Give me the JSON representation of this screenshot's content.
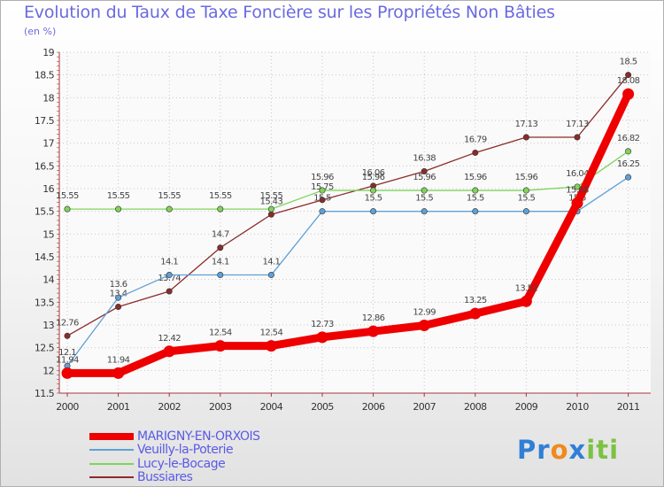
{
  "chart_data": {
    "type": "line",
    "title": "Evolution du Taux de Taxe Foncière sur les Propriétés Non Bâties",
    "unit_label": "(en %)",
    "x": [
      "2000",
      "2001",
      "2002",
      "2003",
      "2004",
      "2005",
      "2006",
      "2007",
      "2008",
      "2009",
      "2010",
      "2011"
    ],
    "y_ticks": [
      "11.5",
      "12",
      "12.5",
      "13",
      "13.5",
      "14",
      "14.5",
      "15",
      "15.5",
      "16",
      "16.5",
      "17",
      "17.5",
      "18",
      "18.5",
      "19"
    ],
    "ylim": [
      11.5,
      19
    ],
    "series": [
      {
        "name": "Bussiares",
        "color": "#8b2b2b",
        "values": [
          12.76,
          13.4,
          13.74,
          14.7,
          15.43,
          15.75,
          16.06,
          16.38,
          16.79,
          17.13,
          17.13,
          18.5
        ],
        "labels": [
          "12.76",
          "13.4",
          "13.74",
          "14.7",
          "15.43",
          "15.75",
          "16.06",
          "16.38",
          "16.79",
          "17.13",
          "17.13",
          "18.5"
        ]
      },
      {
        "name": "Lucy-le-Bocage",
        "color": "#7fd45a",
        "values": [
          15.55,
          15.55,
          15.55,
          15.55,
          15.55,
          15.96,
          15.96,
          15.96,
          15.96,
          15.96,
          16.04,
          16.82
        ],
        "labels": [
          "15.55",
          "15.55",
          "15.55",
          "15.55",
          "15.55",
          "15.96",
          "15.96",
          "15.96",
          "15.96",
          "15.96",
          "16.04",
          "16.82"
        ]
      },
      {
        "name": "Veuilly-la-Poterie",
        "color": "#5fa0d6",
        "values": [
          12.1,
          13.6,
          14.1,
          14.1,
          14.1,
          15.5,
          15.5,
          15.5,
          15.5,
          15.5,
          15.5,
          16.25
        ],
        "labels": [
          "12.1",
          "13.6",
          "14.1",
          "14.1",
          "14.1",
          "15.5",
          "15.5",
          "15.5",
          "15.5",
          "15.5",
          "15.5",
          "16.25"
        ]
      },
      {
        "name": "MARIGNY-EN-ORXOIS",
        "color": "#ee0000",
        "values": [
          11.94,
          11.94,
          12.42,
          12.54,
          12.54,
          12.73,
          12.86,
          12.99,
          13.25,
          13.52,
          15.68,
          18.08
        ],
        "labels": [
          "11.94",
          "11.94",
          "12.42",
          "12.54",
          "12.54",
          "12.73",
          "12.86",
          "12.99",
          "13.25",
          "13.52",
          "15.68",
          "18.08"
        ]
      }
    ]
  },
  "legend": [
    "MARIGNY-EN-ORXOIS",
    "Veuilly-la-Poterie",
    "Lucy-le-Bocage",
    "Bussiares"
  ],
  "brand": {
    "letters": [
      "P",
      "r",
      "o",
      "x",
      "i",
      "t",
      "i"
    ],
    "colors": [
      "#2f7fd6",
      "#2f7fd6",
      "#f08a1c",
      "#2f7fd6",
      "#7cc242",
      "#7cc242",
      "#7cc242"
    ]
  }
}
